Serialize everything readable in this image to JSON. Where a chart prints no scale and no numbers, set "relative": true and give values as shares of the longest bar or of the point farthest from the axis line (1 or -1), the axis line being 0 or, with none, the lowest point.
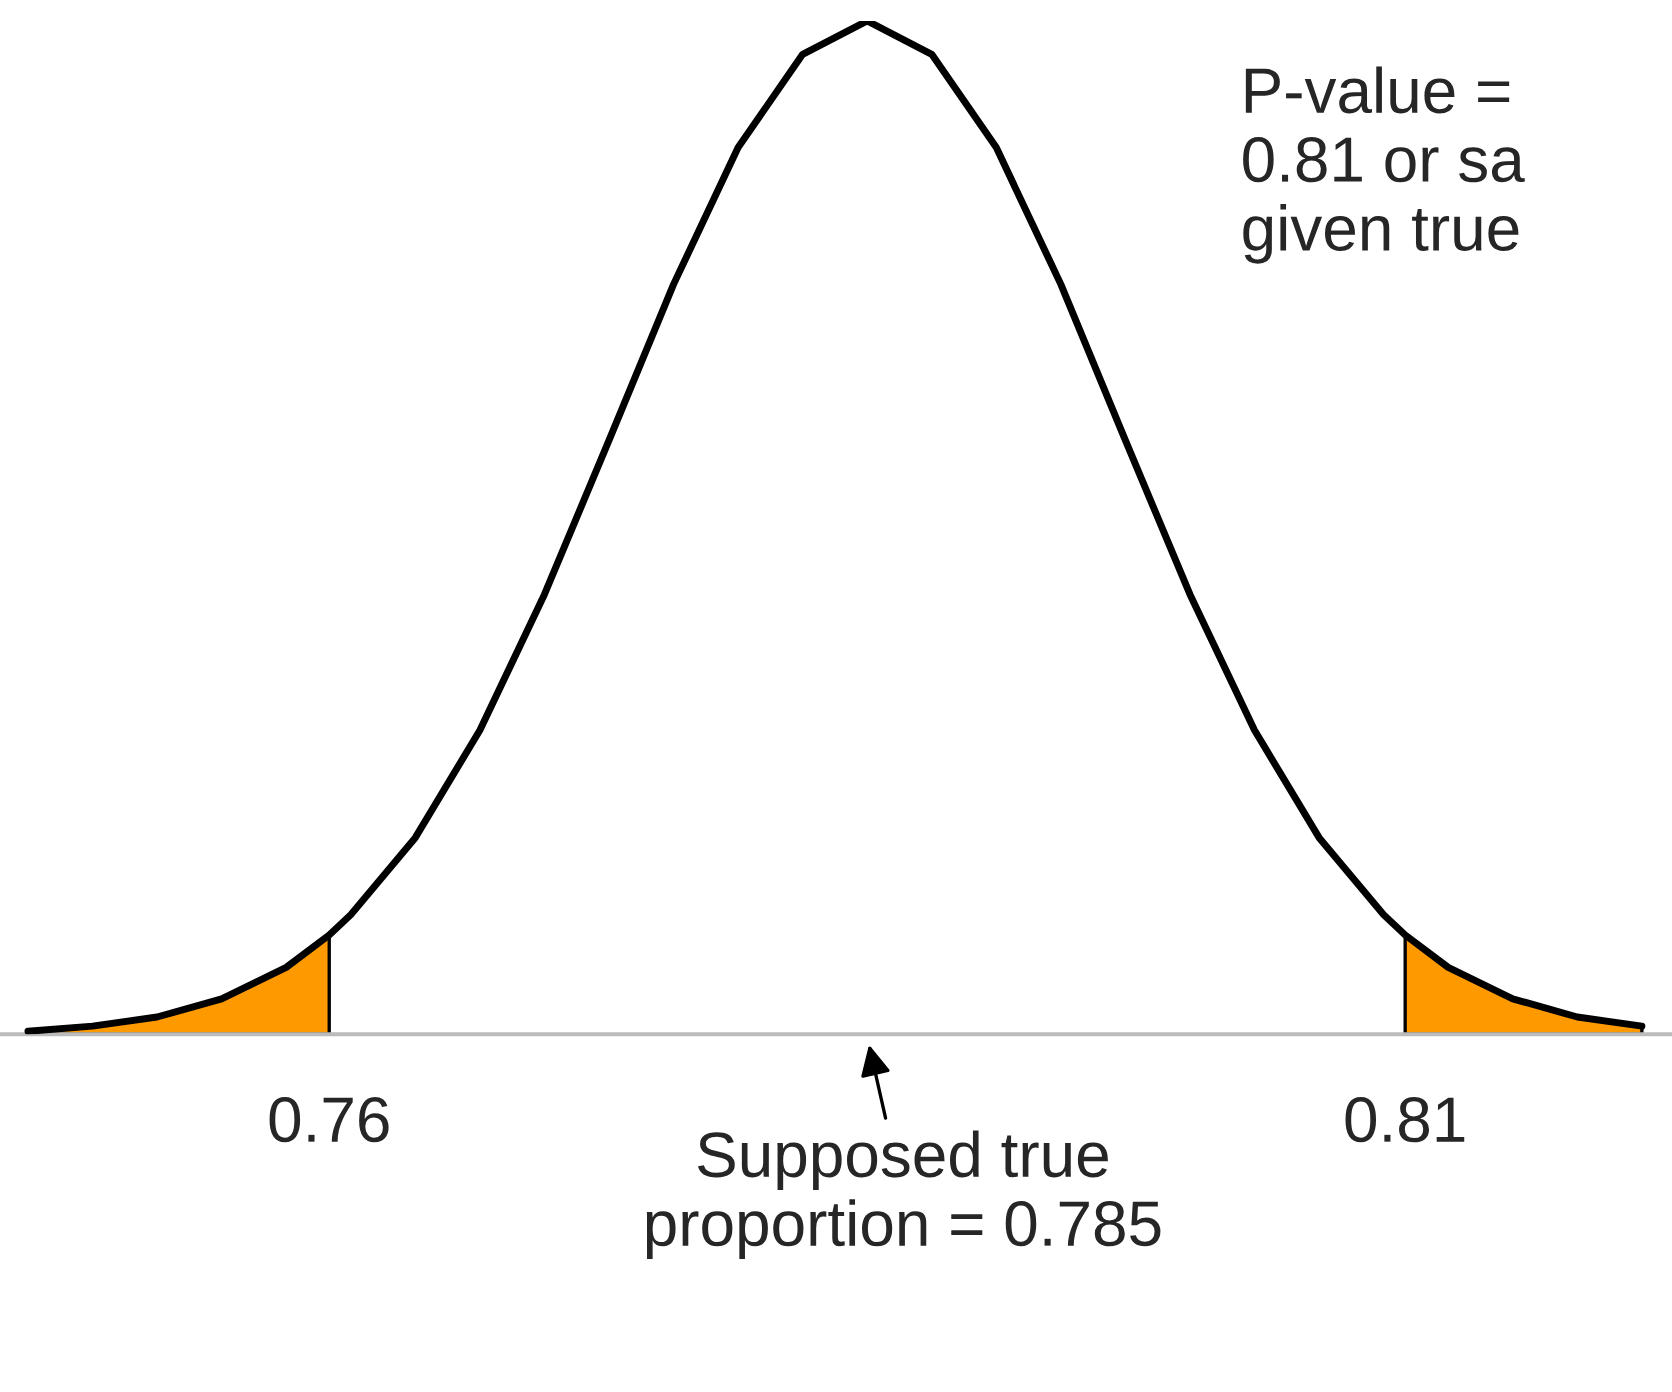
{
  "chart_data": {
    "type": "line",
    "relative": true,
    "xlim": [
      0.7447,
      0.8224
    ],
    "xticks": [
      0.76,
      0.81
    ],
    "grid": false,
    "legend": false,
    "annotations": [
      "Supposed true\nproportion = 0.785",
      "P-value = \n0.81 or sa\ngiven true"
    ],
    "series": [
      {
        "color": "#000000",
        "x": [
          0.746,
          0.749,
          0.752,
          0.755,
          0.758,
          0.76,
          0.761,
          0.764,
          0.767,
          0.77,
          0.773,
          0.776,
          0.779,
          0.782,
          0.785,
          0.788,
          0.791,
          0.794,
          0.797,
          0.8,
          0.803,
          0.806,
          0.809,
          0.81,
          0.812,
          0.815,
          0.818,
          0.821
        ],
        "values": [
          0.003,
          0.008,
          0.017,
          0.035,
          0.066,
          0.098,
          0.118,
          0.194,
          0.3,
          0.434,
          0.586,
          0.74,
          0.875,
          0.967,
          1,
          0.967,
          0.875,
          0.74,
          0.586,
          0.434,
          0.3,
          0.194,
          0.118,
          0.098,
          0.066,
          0.035,
          0.017,
          0.008
        ]
      },
      {
        "type": "area",
        "color": "#ff9900",
        "x": [
          0.746,
          0.749,
          0.752,
          0.755,
          0.758,
          0.76
        ],
        "values": [
          0.003,
          0.008,
          0.017,
          0.035,
          0.066,
          0.098
        ]
      },
      {
        "type": "area",
        "color": "#ff9900",
        "x": [
          0.81,
          0.812,
          0.815,
          0.818,
          0.821
        ],
        "values": [
          0.098,
          0.066,
          0.035,
          0.017,
          0.008
        ]
      }
    ]
  }
}
